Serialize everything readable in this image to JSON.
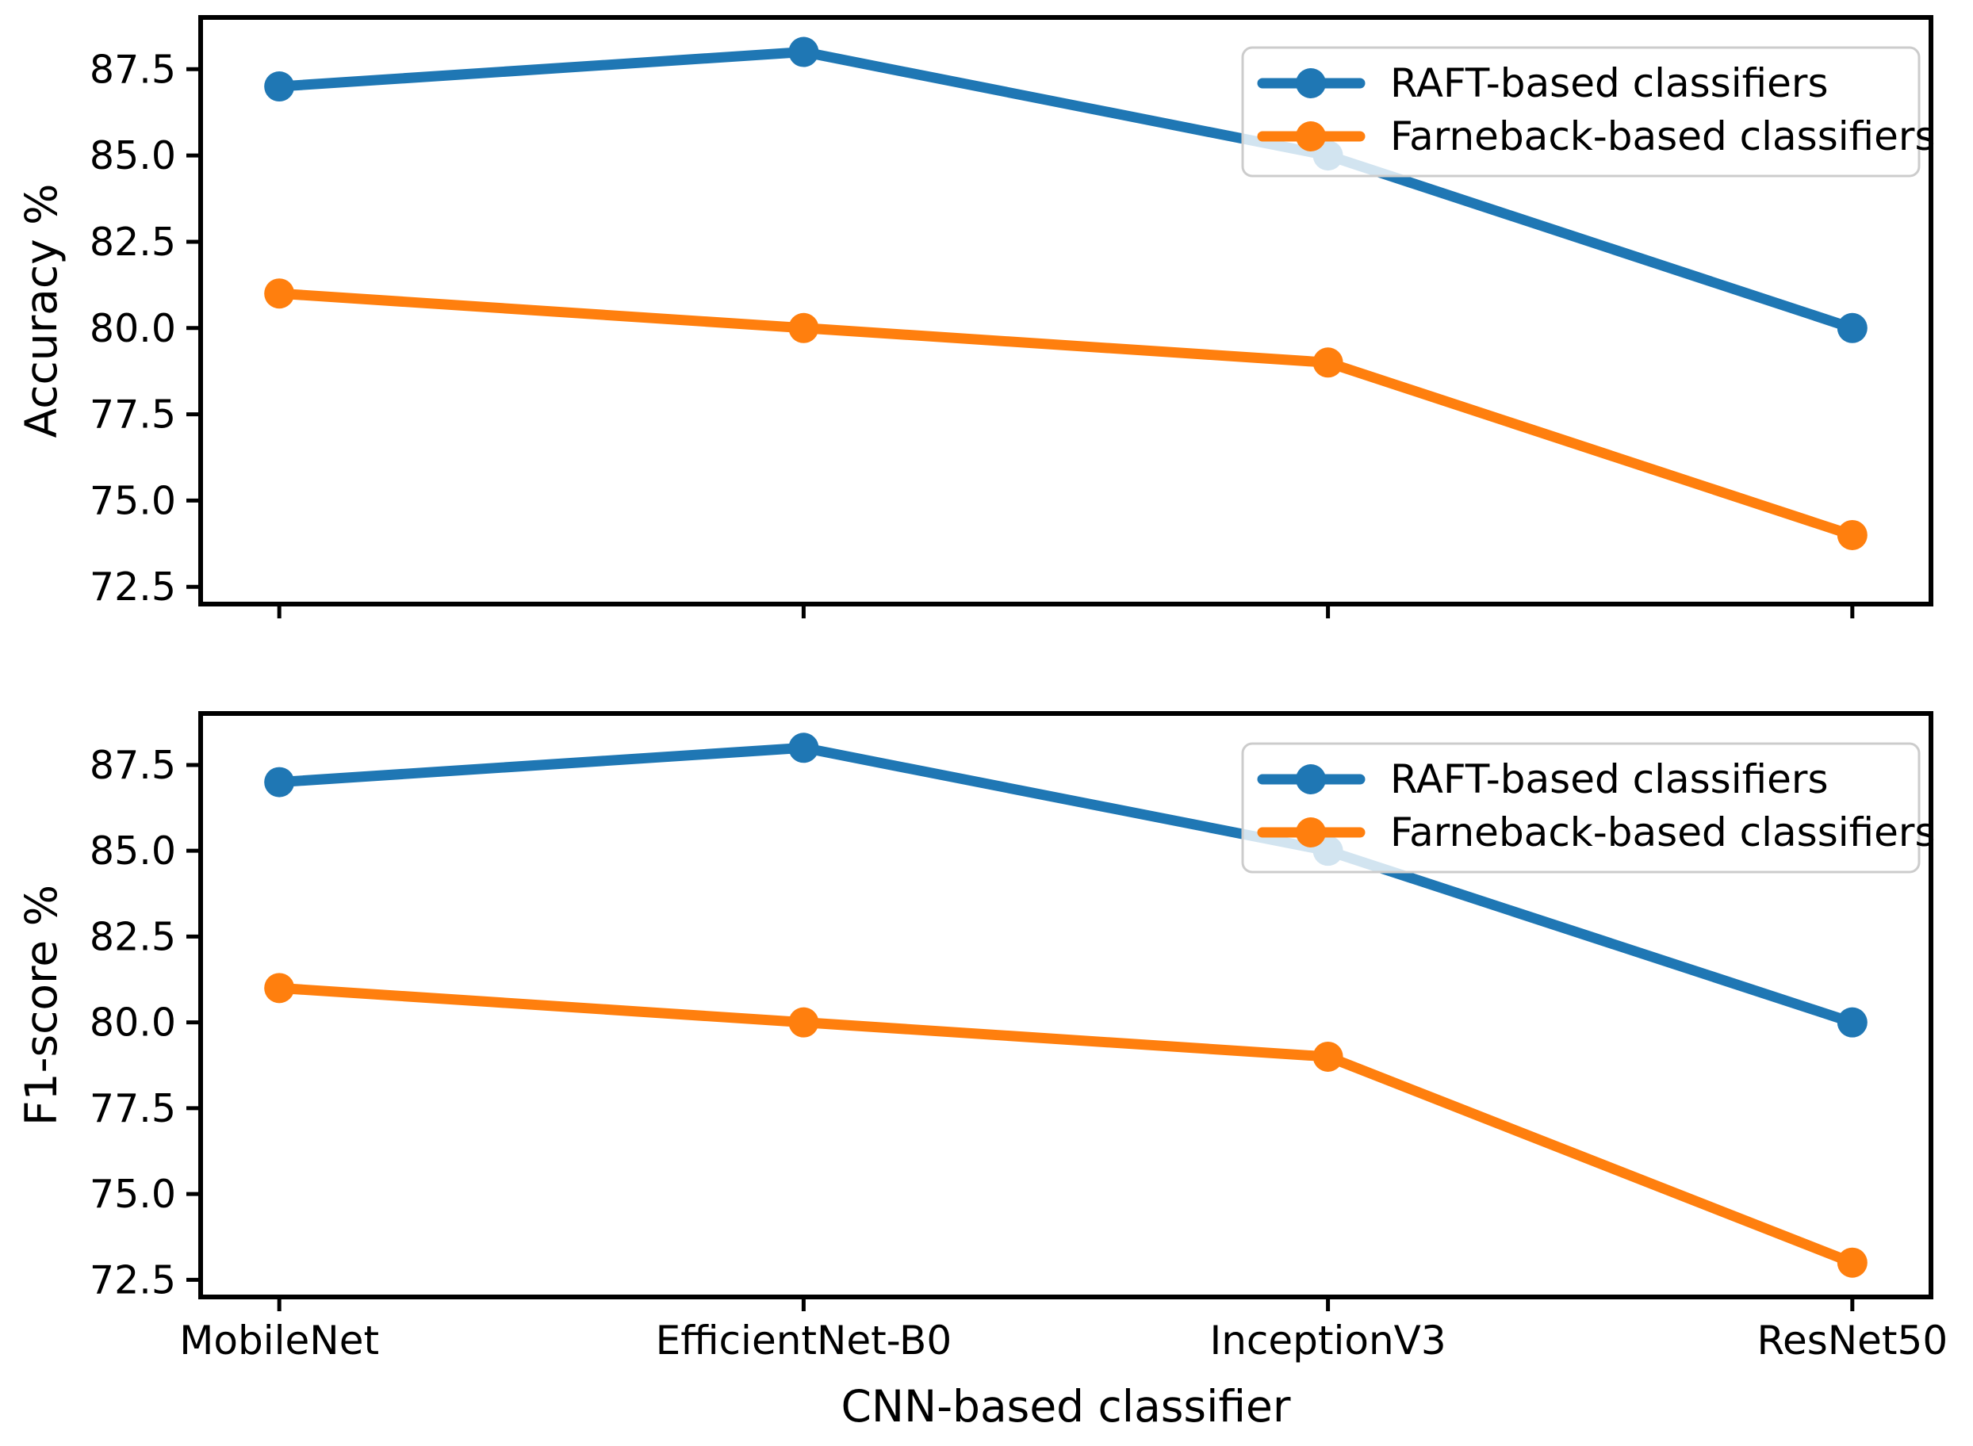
{
  "background": "#ffffff",
  "axis_color": "#000000",
  "legend_border_color": "#cccccc",
  "chart_data": [
    {
      "type": "line",
      "subplot": "top",
      "ylabel": "Accuracy %",
      "categories": [
        "MobileNet",
        "EfficientNet-B0",
        "InceptionV3",
        "ResNet50"
      ],
      "series": [
        {
          "name": "RAFT-based classifiers",
          "color": "#1f77b4",
          "values": [
            87,
            88,
            85,
            80
          ]
        },
        {
          "name": "Farneback-based classifiers",
          "color": "#ff7f0e",
          "values": [
            81,
            80,
            79,
            74
          ]
        }
      ],
      "yticks": [
        "72.5",
        "75.0",
        "77.5",
        "80.0",
        "82.5",
        "85.0",
        "87.5"
      ],
      "ylim": [
        72.0,
        89.0
      ],
      "grid": false,
      "legend_position": "upper right",
      "show_x_tick_labels": false
    },
    {
      "type": "line",
      "subplot": "bottom",
      "ylabel": "F1-score %",
      "xlabel": "CNN-based classifier",
      "categories": [
        "MobileNet",
        "EfficientNet-B0",
        "InceptionV3",
        "ResNet50"
      ],
      "series": [
        {
          "name": "RAFT-based classifiers",
          "color": "#1f77b4",
          "values": [
            87,
            88,
            85,
            80
          ]
        },
        {
          "name": "Farneback-based classifiers",
          "color": "#ff7f0e",
          "values": [
            81,
            80,
            79,
            73
          ]
        }
      ],
      "yticks": [
        "72.5",
        "75.0",
        "77.5",
        "80.0",
        "82.5",
        "85.0",
        "87.5"
      ],
      "ylim": [
        72.0,
        89.0
      ],
      "grid": false,
      "legend_position": "upper right",
      "show_x_tick_labels": true
    }
  ]
}
